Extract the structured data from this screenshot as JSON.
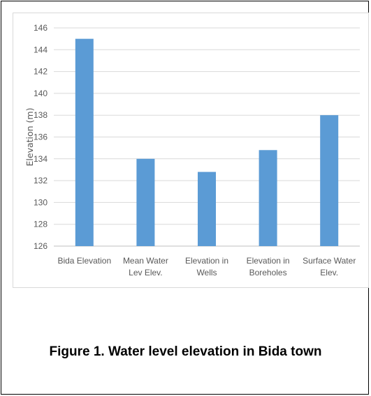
{
  "chart_data": {
    "type": "bar",
    "title": "",
    "xlabel": "",
    "ylabel": "Elevation (m)",
    "categories": [
      [
        "Bida Elevation"
      ],
      [
        "Mean Water",
        "Lev Elev."
      ],
      [
        "Elevation in",
        "Wells"
      ],
      [
        "Elevation in",
        "Boreholes"
      ],
      [
        "Surface Water",
        "Elev."
      ]
    ],
    "values": [
      145,
      134,
      132.8,
      134.8,
      138
    ],
    "ylim": [
      126,
      146
    ],
    "yticks": [
      126,
      128,
      130,
      132,
      134,
      136,
      138,
      140,
      142,
      144,
      146
    ],
    "grid": true,
    "legend": "none",
    "bar_color": "#5b9bd5",
    "grid_color": "#d9d9d9",
    "axis_color": "#bfbfbf"
  },
  "figure": {
    "caption": "Figure 1. Water level elevation in Bida town"
  }
}
